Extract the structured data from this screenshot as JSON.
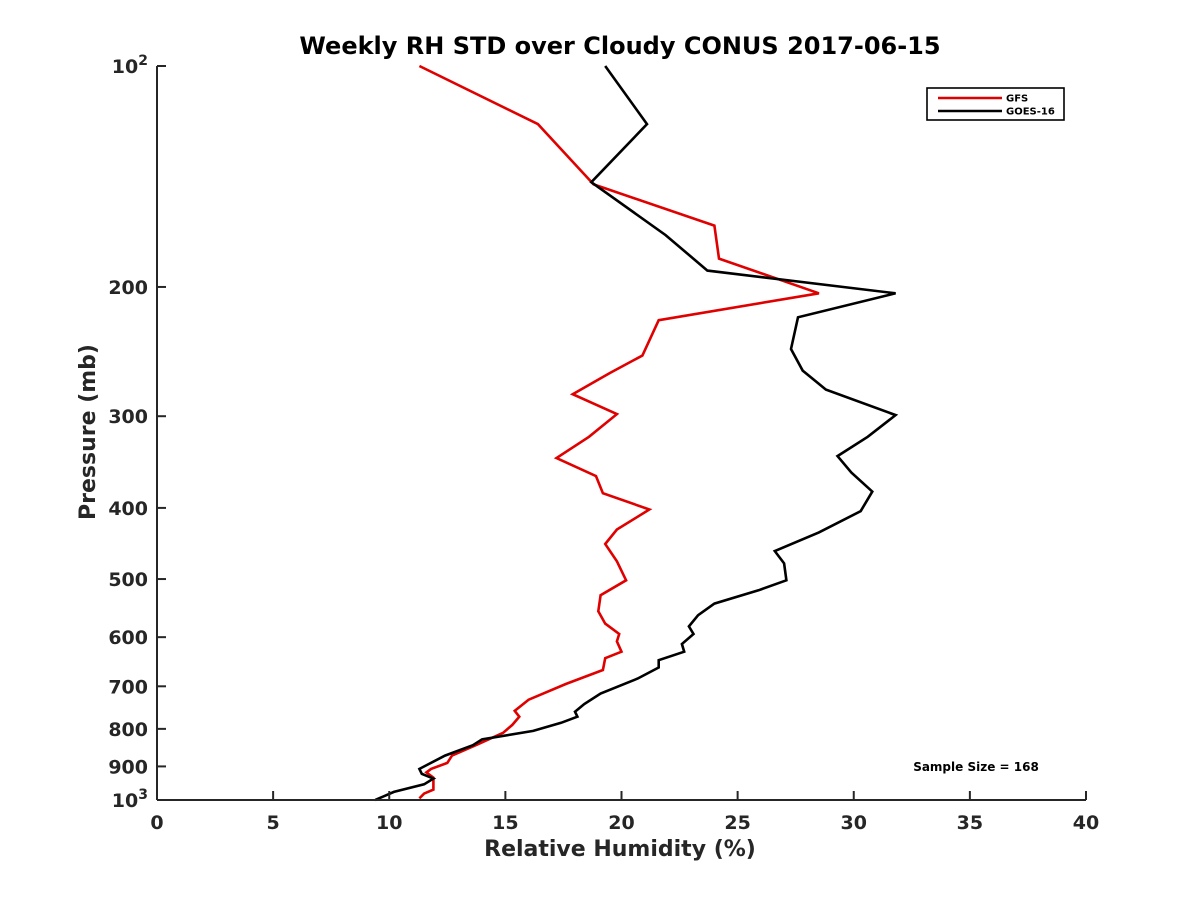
{
  "chart_data": {
    "type": "line",
    "title": "Weekly RH STD over Cloudy CONUS 2017-06-15",
    "xlabel": "Relative Humidity (%)",
    "ylabel": "Pressure (mb)",
    "xlim": [
      0,
      40
    ],
    "ylim": [
      100,
      1000
    ],
    "yscale": "log",
    "y_reversed": true,
    "x_ticks": [
      0,
      5,
      10,
      15,
      20,
      25,
      30,
      35,
      40
    ],
    "x_tick_labels": [
      "0",
      "5",
      "10",
      "15",
      "20",
      "25",
      "30",
      "35",
      "40"
    ],
    "y_ticks": [
      100,
      200,
      300,
      400,
      500,
      600,
      700,
      800,
      900,
      1000
    ],
    "y_tick_labels": [
      {
        "base": "10",
        "exp": "2"
      },
      {
        "base": "200",
        "exp": ""
      },
      {
        "base": "300",
        "exp": ""
      },
      {
        "base": "400",
        "exp": ""
      },
      {
        "base": "500",
        "exp": ""
      },
      {
        "base": "600",
        "exp": ""
      },
      {
        "base": "700",
        "exp": ""
      },
      {
        "base": "800",
        "exp": ""
      },
      {
        "base": "900",
        "exp": ""
      },
      {
        "base": "10",
        "exp": "3"
      }
    ],
    "grid": false,
    "legend_position": "top-right",
    "series": [
      {
        "name": "GFS",
        "color": "#e00000",
        "points": [
          [
            11.3,
            100
          ],
          [
            16.4,
            120
          ],
          [
            18.8,
            145
          ],
          [
            24.0,
            165
          ],
          [
            24.2,
            183
          ],
          [
            28.5,
            204
          ],
          [
            21.6,
            222
          ],
          [
            20.9,
            248
          ],
          [
            19.5,
            262
          ],
          [
            17.9,
            280
          ],
          [
            19.8,
            298
          ],
          [
            18.6,
            320
          ],
          [
            17.2,
            342
          ],
          [
            18.9,
            362
          ],
          [
            19.2,
            382
          ],
          [
            21.2,
            402
          ],
          [
            19.8,
            428
          ],
          [
            19.3,
            448
          ],
          [
            19.8,
            473
          ],
          [
            20.2,
            502
          ],
          [
            19.1,
            526
          ],
          [
            19.0,
            553
          ],
          [
            19.3,
            575
          ],
          [
            19.9,
            594
          ],
          [
            19.8,
            608
          ],
          [
            20.0,
            628
          ],
          [
            19.3,
            641
          ],
          [
            19.2,
            665
          ],
          [
            17.6,
            695
          ],
          [
            16.0,
            730
          ],
          [
            15.4,
            756
          ],
          [
            15.6,
            770
          ],
          [
            15.3,
            790
          ],
          [
            14.9,
            810
          ],
          [
            13.8,
            840
          ],
          [
            12.7,
            870
          ],
          [
            12.5,
            890
          ],
          [
            11.8,
            907
          ],
          [
            11.6,
            917
          ],
          [
            11.9,
            932
          ],
          [
            11.9,
            968
          ],
          [
            11.5,
            980
          ],
          [
            11.3,
            995
          ]
        ]
      },
      {
        "name": "GOES-16",
        "color": "#000000",
        "points": [
          [
            19.3,
            100
          ],
          [
            21.1,
            120
          ],
          [
            18.7,
            144
          ],
          [
            21.9,
            170
          ],
          [
            23.7,
            190
          ],
          [
            31.8,
            204
          ],
          [
            27.6,
            220
          ],
          [
            27.3,
            243
          ],
          [
            27.8,
            260
          ],
          [
            28.8,
            276
          ],
          [
            31.8,
            299
          ],
          [
            30.6,
            320
          ],
          [
            29.3,
            340
          ],
          [
            29.9,
            358
          ],
          [
            30.8,
            380
          ],
          [
            30.3,
            404
          ],
          [
            28.5,
            432
          ],
          [
            26.6,
            458
          ],
          [
            27.0,
            476
          ],
          [
            27.1,
            502
          ],
          [
            25.9,
            518
          ],
          [
            24.0,
            540
          ],
          [
            23.3,
            560
          ],
          [
            22.9,
            580
          ],
          [
            23.1,
            594
          ],
          [
            22.6,
            613
          ],
          [
            22.7,
            628
          ],
          [
            21.6,
            645
          ],
          [
            21.6,
            660
          ],
          [
            20.7,
            683
          ],
          [
            19.1,
            716
          ],
          [
            18.4,
            740
          ],
          [
            18.0,
            758
          ],
          [
            18.1,
            770
          ],
          [
            17.4,
            785
          ],
          [
            16.2,
            805
          ],
          [
            14.0,
            827
          ],
          [
            13.6,
            842
          ],
          [
            12.4,
            870
          ],
          [
            11.3,
            907
          ],
          [
            11.4,
            921
          ],
          [
            11.9,
            935
          ],
          [
            11.5,
            952
          ],
          [
            10.2,
            975
          ],
          [
            9.4,
            1000
          ]
        ]
      }
    ],
    "annotation": "Sample Size = 168"
  }
}
